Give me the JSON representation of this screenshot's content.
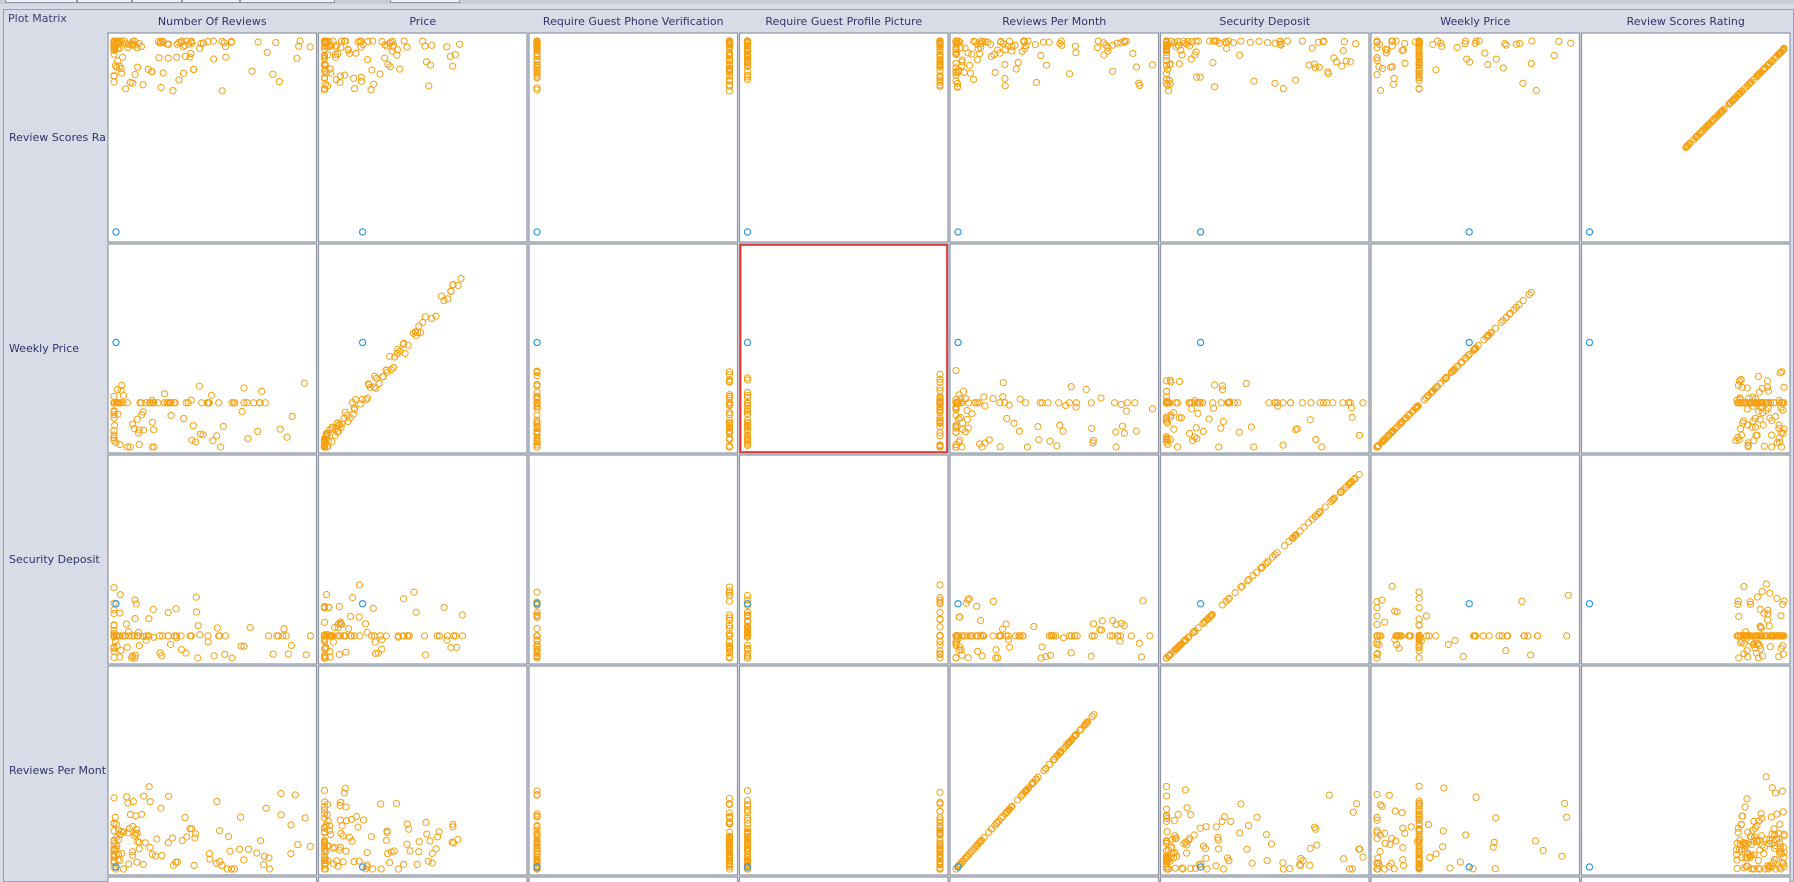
{
  "title": "Plot Matrix",
  "colors": {
    "point": "#f5a112",
    "selected": "#2f9be0",
    "dark": "#5a6a4a",
    "highlight": "#e8282a",
    "label": "#2f336a"
  },
  "chart_data": {
    "type": "scatter",
    "columns": [
      "Number Of Reviews",
      "Price",
      "Require Guest Phone Verification",
      "Require Guest Profile Picture",
      "Reviews Per Month",
      "Security Deposit",
      "Weekly Price",
      "Review Scores Rating"
    ],
    "rows": [
      "Review Scores Ra",
      "Weekly Price",
      "Security Deposit",
      "Reviews Per Mont"
    ],
    "highlighted_cell": {
      "row": "Weekly Price",
      "column": "Require Guest Profile Picture"
    }
  }
}
